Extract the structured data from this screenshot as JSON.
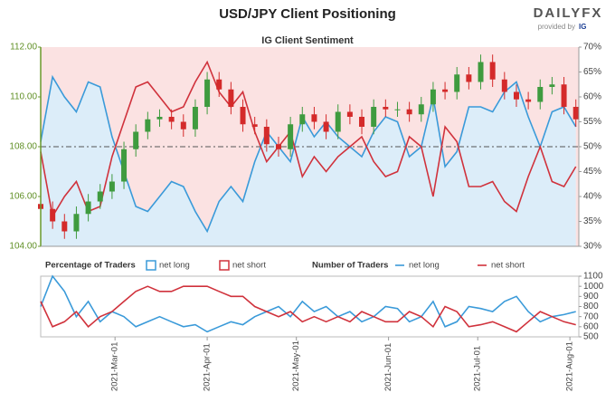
{
  "header": {
    "title": "USD/JPY Client Positioning",
    "logo": "DAILYFX",
    "logo_sub": "provided by",
    "logo_ig": "IG"
  },
  "chart_data": [
    {
      "type": "candlestick",
      "title": "IG Client Sentiment",
      "x": [
        "2021-02-04",
        "2021-02-08",
        "2021-02-12",
        "2021-02-16",
        "2021-02-20",
        "2021-02-24",
        "2021-02-28",
        "2021-03-04",
        "2021-03-08",
        "2021-03-12",
        "2021-03-16",
        "2021-03-20",
        "2021-03-24",
        "2021-03-28",
        "2021-04-01",
        "2021-04-05",
        "2021-04-09",
        "2021-04-13",
        "2021-04-17",
        "2021-04-21",
        "2021-04-25",
        "2021-04-29",
        "2021-05-03",
        "2021-05-07",
        "2021-05-11",
        "2021-05-15",
        "2021-05-19",
        "2021-05-23",
        "2021-05-27",
        "2021-05-31",
        "2021-06-04",
        "2021-06-08",
        "2021-06-12",
        "2021-06-16",
        "2021-06-20",
        "2021-06-24",
        "2021-06-28",
        "2021-07-02",
        "2021-07-06",
        "2021-07-10",
        "2021-07-14",
        "2021-07-18",
        "2021-07-22",
        "2021-07-26",
        "2021-07-30",
        "2021-08-03"
      ],
      "xlim": [
        "2021-02-04",
        "2021-08-04"
      ],
      "open": [
        105.7,
        105.5,
        105.0,
        104.6,
        105.3,
        105.8,
        106.2,
        106.6,
        107.9,
        108.6,
        109.1,
        109.2,
        109.0,
        108.7,
        109.6,
        110.7,
        110.3,
        109.6,
        108.9,
        108.8,
        108.1,
        107.9,
        108.9,
        109.3,
        109.0,
        108.6,
        109.4,
        109.2,
        108.8,
        109.6,
        109.5,
        109.5,
        109.3,
        109.7,
        110.3,
        110.2,
        110.9,
        110.6,
        111.4,
        110.7,
        110.2,
        109.9,
        109.8,
        110.4,
        110.5,
        109.6
      ],
      "high": [
        106.0,
        105.8,
        105.3,
        105.6,
        106.1,
        106.5,
        106.9,
        108.2,
        108.9,
        109.4,
        109.5,
        109.5,
        109.3,
        109.9,
        111.0,
        111.0,
        110.6,
        109.9,
        109.2,
        109.1,
        108.4,
        109.2,
        109.6,
        109.6,
        109.3,
        109.7,
        109.7,
        109.5,
        109.9,
        109.9,
        109.8,
        109.8,
        110.0,
        110.6,
        110.6,
        111.2,
        111.2,
        111.7,
        111.7,
        111.0,
        110.5,
        110.2,
        110.7,
        110.8,
        110.8,
        109.9
      ],
      "low": [
        105.2,
        104.7,
        104.3,
        104.3,
        105.0,
        105.5,
        105.9,
        106.3,
        107.6,
        108.3,
        108.8,
        108.7,
        108.4,
        108.4,
        109.3,
        110.0,
        109.3,
        108.6,
        108.5,
        107.8,
        107.6,
        107.6,
        108.6,
        108.7,
        108.3,
        108.3,
        108.9,
        108.5,
        108.5,
        109.2,
        109.2,
        109.0,
        109.0,
        109.4,
        109.9,
        109.9,
        110.3,
        110.3,
        110.4,
        109.9,
        109.6,
        109.5,
        109.5,
        110.1,
        109.3,
        108.8
      ],
      "close": [
        105.5,
        105.0,
        104.6,
        105.3,
        105.8,
        106.2,
        106.6,
        107.9,
        108.6,
        109.1,
        109.2,
        109.0,
        108.7,
        109.6,
        110.7,
        110.3,
        109.6,
        108.9,
        108.8,
        108.1,
        107.9,
        108.9,
        109.3,
        109.0,
        108.6,
        109.4,
        109.2,
        108.8,
        109.6,
        109.5,
        109.5,
        109.3,
        109.7,
        110.3,
        110.2,
        110.9,
        110.6,
        111.4,
        110.7,
        110.2,
        109.9,
        109.8,
        110.4,
        110.5,
        109.6,
        109.1
      ],
      "up_color": "#3f9b3f",
      "down_color": "#d42a2a",
      "ylim": [
        104,
        112
      ],
      "yticks": [
        {
          "value": 104,
          "label": "104.00"
        },
        {
          "value": 106,
          "label": "106.00"
        },
        {
          "value": 108,
          "label": "108.00"
        },
        {
          "value": 110,
          "label": "110.00"
        },
        {
          "value": 112,
          "label": "112.00"
        }
      ],
      "y2lim": [
        30,
        70
      ],
      "y2ticks": [
        {
          "value": 30,
          "label": "30%"
        },
        {
          "value": 35,
          "label": "35%"
        },
        {
          "value": 40,
          "label": "40%"
        },
        {
          "value": 45,
          "label": "45%"
        },
        {
          "value": 50,
          "label": "50%"
        },
        {
          "value": 55,
          "label": "55%"
        },
        {
          "value": 60,
          "label": "60%"
        },
        {
          "value": 65,
          "label": "65%"
        },
        {
          "value": 70,
          "label": "70%"
        }
      ],
      "hline": 50,
      "series": [
        {
          "name": "net long",
          "color": "#3a9ad9",
          "axis": "y2",
          "values": [
            51,
            64,
            60,
            57,
            63,
            62,
            52,
            45,
            38,
            37,
            40,
            43,
            42,
            37,
            33,
            39,
            42,
            39,
            47,
            53,
            50,
            47,
            56,
            52,
            55,
            52,
            50,
            48,
            53,
            56,
            55,
            48,
            50,
            60,
            46,
            49,
            58,
            58,
            57,
            61,
            63,
            56,
            50,
            57,
            58,
            54
          ]
        },
        {
          "name": "net short",
          "color": "#d0323c",
          "axis": "y2",
          "values": [
            49,
            36,
            40,
            43,
            37,
            38,
            48,
            55,
            62,
            63,
            60,
            57,
            58,
            63,
            67,
            61,
            58,
            61,
            53,
            47,
            50,
            53,
            44,
            48,
            45,
            48,
            50,
            52,
            47,
            44,
            45,
            52,
            50,
            40,
            54,
            51,
            42,
            42,
            43,
            39,
            37,
            44,
            50,
            43,
            42,
            46
          ]
        }
      ]
    },
    {
      "type": "line",
      "legend_groups": [
        "Percentage of Traders",
        "Number of Traders"
      ],
      "x": [
        "2021-02-04",
        "2021-02-08",
        "2021-02-12",
        "2021-02-16",
        "2021-02-20",
        "2021-02-24",
        "2021-02-28",
        "2021-03-04",
        "2021-03-08",
        "2021-03-12",
        "2021-03-16",
        "2021-03-20",
        "2021-03-24",
        "2021-03-28",
        "2021-04-01",
        "2021-04-05",
        "2021-04-09",
        "2021-04-13",
        "2021-04-17",
        "2021-04-21",
        "2021-04-25",
        "2021-04-29",
        "2021-05-03",
        "2021-05-07",
        "2021-05-11",
        "2021-05-15",
        "2021-05-19",
        "2021-05-23",
        "2021-05-27",
        "2021-05-31",
        "2021-06-04",
        "2021-06-08",
        "2021-06-12",
        "2021-06-16",
        "2021-06-20",
        "2021-06-24",
        "2021-06-28",
        "2021-07-02",
        "2021-07-06",
        "2021-07-10",
        "2021-07-14",
        "2021-07-18",
        "2021-07-22",
        "2021-07-26",
        "2021-07-30",
        "2021-08-03"
      ],
      "xlim": [
        "2021-02-04",
        "2021-08-04"
      ],
      "xticks": [
        {
          "value": "2021-03-01",
          "label": "2021-Mar-01"
        },
        {
          "value": "2021-04-01",
          "label": "2021-Apr-01"
        },
        {
          "value": "2021-05-01",
          "label": "2021-May-01"
        },
        {
          "value": "2021-06-01",
          "label": "2021-Jun-01"
        },
        {
          "value": "2021-07-01",
          "label": "2021-Jul-01"
        },
        {
          "value": "2021-08-01",
          "label": "2021-Aug-01"
        }
      ],
      "y2lim": [
        500,
        1100
      ],
      "y2ticks": [
        500,
        600,
        700,
        800,
        900,
        1000,
        1100
      ],
      "series": [
        {
          "name": "net long",
          "color": "#3a9ad9",
          "axis": "y2",
          "values": [
            800,
            1100,
            950,
            700,
            850,
            650,
            750,
            700,
            600,
            650,
            700,
            650,
            600,
            620,
            550,
            600,
            650,
            620,
            700,
            750,
            800,
            700,
            850,
            750,
            800,
            700,
            750,
            650,
            700,
            800,
            780,
            650,
            700,
            850,
            600,
            650,
            800,
            780,
            750,
            850,
            900,
            750,
            650,
            700,
            720,
            750
          ]
        },
        {
          "name": "net short",
          "color": "#d0323c",
          "axis": "y2",
          "values": [
            850,
            600,
            650,
            750,
            600,
            700,
            750,
            850,
            950,
            1000,
            950,
            950,
            1000,
            1000,
            1000,
            950,
            900,
            900,
            800,
            750,
            700,
            750,
            650,
            700,
            650,
            700,
            650,
            750,
            700,
            650,
            650,
            750,
            700,
            600,
            800,
            750,
            600,
            620,
            650,
            600,
            550,
            650,
            750,
            700,
            650,
            620
          ]
        }
      ]
    }
  ]
}
